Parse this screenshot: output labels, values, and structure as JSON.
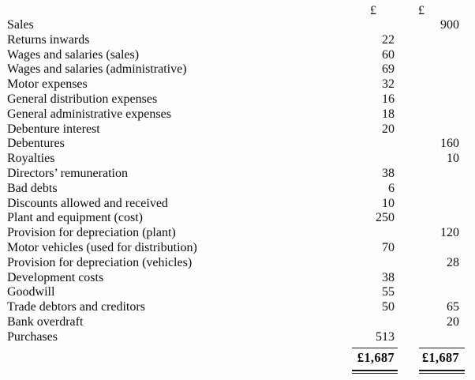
{
  "document": {
    "header": {
      "debit_symbol": "£",
      "credit_symbol": "£"
    },
    "rows": [
      {
        "label": "Sales",
        "debit": "",
        "credit": "900"
      },
      {
        "label": "Returns inwards",
        "debit": "22",
        "credit": ""
      },
      {
        "label": "Wages and salaries (sales)",
        "debit": "60",
        "credit": ""
      },
      {
        "label": "Wages and salaries (administrative)",
        "debit": "69",
        "credit": ""
      },
      {
        "label": "Motor expenses",
        "debit": "32",
        "credit": ""
      },
      {
        "label": "General distribution expenses",
        "debit": "16",
        "credit": ""
      },
      {
        "label": "General administrative expenses",
        "debit": "18",
        "credit": ""
      },
      {
        "label": "Debenture interest",
        "debit": "20",
        "credit": ""
      },
      {
        "label": "Debentures",
        "debit": "",
        "credit": "160"
      },
      {
        "label": "Royalties",
        "debit": "",
        "credit": "10"
      },
      {
        "label": "Directors’ remuneration",
        "debit": "38",
        "credit": ""
      },
      {
        "label": "Bad debts",
        "debit": "6",
        "credit": ""
      },
      {
        "label": "Discounts allowed and received",
        "debit": "10",
        "credit": ""
      },
      {
        "label": "Plant and equipment (cost)",
        "debit": "250",
        "credit": ""
      },
      {
        "label": "Provision for depreciation (plant)",
        "debit": "",
        "credit": "120"
      },
      {
        "label": "Motor vehicles (used for distribution)",
        "debit": "70",
        "credit": ""
      },
      {
        "label": "Provision for depreciation (vehicles)",
        "debit": "",
        "credit": "28"
      },
      {
        "label": "Development costs",
        "debit": "38",
        "credit": ""
      },
      {
        "label": "Goodwill",
        "debit": "55",
        "credit": ""
      },
      {
        "label": "Trade debtors and creditors",
        "debit": "50",
        "credit": "65"
      },
      {
        "label": "Bank overdraft",
        "debit": "",
        "credit": "20"
      },
      {
        "label": "Purchases",
        "debit": "513",
        "credit": ""
      }
    ],
    "totals": {
      "debit": "£1,687",
      "credit": "£1,687"
    }
  }
}
